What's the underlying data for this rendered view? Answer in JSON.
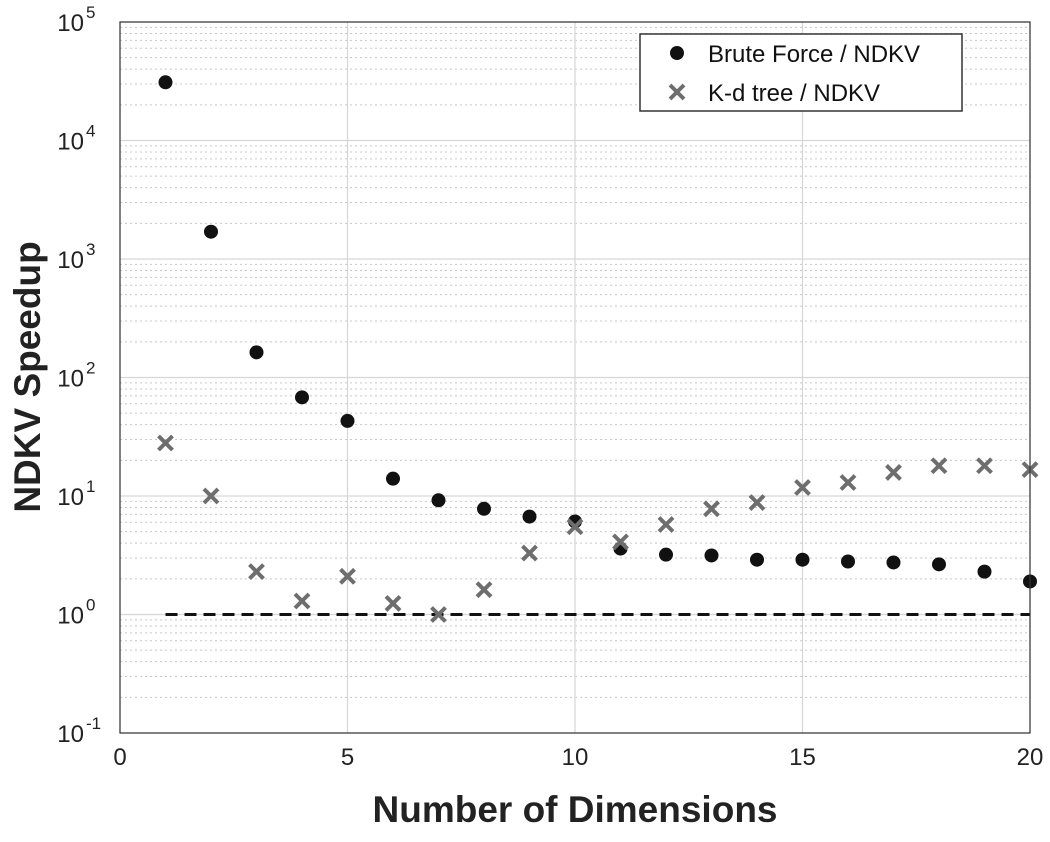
{
  "chart_data": {
    "type": "scatter",
    "xlabel": "Number of Dimensions",
    "ylabel": "NDKV Speedup",
    "xlim": [
      0,
      20
    ],
    "ylim": [
      0.1,
      100000
    ],
    "yscale": "log",
    "grid": true,
    "legend_position": "top-right",
    "x_ticks": [
      "0",
      "5",
      "10",
      "15",
      "20"
    ],
    "x_tick_values": [
      0,
      5,
      10,
      15,
      20
    ],
    "y_tick_exponents": [
      "-1",
      "0",
      "1",
      "2",
      "3",
      "4",
      "5"
    ],
    "y_tick_base": "10",
    "x": [
      1,
      2,
      3,
      4,
      5,
      6,
      7,
      8,
      9,
      10,
      11,
      12,
      13,
      14,
      15,
      16,
      17,
      18,
      19,
      20
    ],
    "series": [
      {
        "name": "Brute Force / NDKV",
        "marker": "dot",
        "color": "#111111",
        "values": [
          31000,
          1700,
          163,
          68,
          43,
          14,
          9.2,
          7.8,
          6.7,
          6.1,
          3.6,
          3.2,
          3.15,
          2.9,
          2.9,
          2.8,
          2.75,
          2.65,
          2.3,
          1.9
        ]
      },
      {
        "name": "K-d tree / NDKV",
        "marker": "x",
        "color": "#6e6e6e",
        "values": [
          28,
          10,
          2.3,
          1.3,
          2.1,
          1.24,
          1.0,
          1.62,
          3.3,
          5.5,
          4.1,
          5.75,
          7.8,
          8.8,
          11.8,
          13,
          15.8,
          18,
          18,
          16.7
        ]
      }
    ],
    "reference_line": {
      "y": 1,
      "x_range": [
        1,
        20
      ],
      "style": "dashed"
    }
  }
}
